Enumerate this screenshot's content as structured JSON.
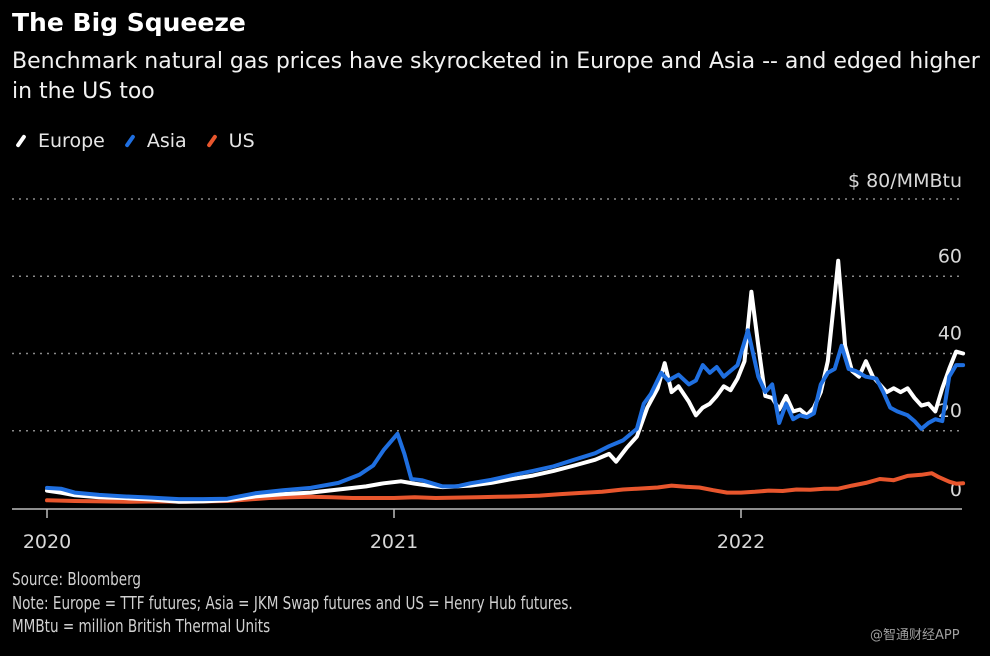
{
  "chart_data": {
    "type": "line",
    "title": "The Big Squeeze",
    "subtitle": "Benchmark natural gas prices have skyrocketed in Europe and Asia -- and edged higher in the US too",
    "xlabel": "",
    "ylabel": "$/MMBtu",
    "y_unit_label": "$ 80/MMBtu",
    "ylim": [
      0,
      80
    ],
    "yticks": [
      0,
      20,
      40,
      60,
      80
    ],
    "ytick_labels": [
      "0",
      "20",
      "40",
      "60",
      "$ 80/MMBtu"
    ],
    "xlim": [
      2020.0,
      2022.5
    ],
    "xticks": [
      2020,
      2021,
      2022
    ],
    "xtick_labels": [
      "2020",
      "2021",
      "2022"
    ],
    "grid": "horizontal-dotted",
    "legend_position": "top-left",
    "series": [
      {
        "name": "Europe",
        "color": "#ffffff",
        "points": [
          [
            2020.0,
            4.5
          ],
          [
            2020.04,
            4.0
          ],
          [
            2020.08,
            3.3
          ],
          [
            2020.15,
            2.8
          ],
          [
            2020.22,
            2.6
          ],
          [
            2020.3,
            2.2
          ],
          [
            2020.38,
            1.6
          ],
          [
            2020.45,
            1.7
          ],
          [
            2020.52,
            2.0
          ],
          [
            2020.6,
            3.0
          ],
          [
            2020.68,
            3.6
          ],
          [
            2020.76,
            4.0
          ],
          [
            2020.84,
            4.8
          ],
          [
            2020.92,
            5.6
          ],
          [
            2020.97,
            6.4
          ],
          [
            2021.02,
            6.9
          ],
          [
            2021.06,
            6.3
          ],
          [
            2021.1,
            5.8
          ],
          [
            2021.14,
            5.4
          ],
          [
            2021.18,
            5.6
          ],
          [
            2021.22,
            5.8
          ],
          [
            2021.28,
            6.5
          ],
          [
            2021.34,
            7.5
          ],
          [
            2021.4,
            8.4
          ],
          [
            2021.46,
            9.6
          ],
          [
            2021.52,
            11.0
          ],
          [
            2021.58,
            12.5
          ],
          [
            2021.62,
            14.0
          ],
          [
            2021.64,
            12.0
          ],
          [
            2021.67,
            15.5
          ],
          [
            2021.7,
            18.5
          ],
          [
            2021.73,
            26.0
          ],
          [
            2021.76,
            31.0
          ],
          [
            2021.78,
            37.5
          ],
          [
            2021.8,
            30.0
          ],
          [
            2021.82,
            31.5
          ],
          [
            2021.85,
            27.5
          ],
          [
            2021.87,
            24.0
          ],
          [
            2021.89,
            26.0
          ],
          [
            2021.91,
            27.0
          ],
          [
            2021.93,
            29.0
          ],
          [
            2021.95,
            31.5
          ],
          [
            2021.97,
            30.5
          ],
          [
            2021.99,
            33.5
          ],
          [
            2022.01,
            38.0
          ],
          [
            2022.03,
            56.0
          ],
          [
            2022.05,
            42.0
          ],
          [
            2022.07,
            29.0
          ],
          [
            2022.09,
            28.5
          ],
          [
            2022.11,
            25.5
          ],
          [
            2022.13,
            29.0
          ],
          [
            2022.15,
            25.0
          ],
          [
            2022.17,
            25.5
          ],
          [
            2022.19,
            24.0
          ],
          [
            2022.21,
            26.0
          ],
          [
            2022.23,
            30.0
          ],
          [
            2022.25,
            38.0
          ],
          [
            2022.27,
            55.0
          ],
          [
            2022.28,
            64.0
          ],
          [
            2022.3,
            42.0
          ],
          [
            2022.32,
            35.5
          ],
          [
            2022.34,
            34.0
          ],
          [
            2022.36,
            38.0
          ],
          [
            2022.38,
            34.0
          ],
          [
            2022.4,
            32.0
          ],
          [
            2022.42,
            30.0
          ],
          [
            2022.44,
            31.0
          ],
          [
            2022.46,
            30.0
          ],
          [
            2022.48,
            31.0
          ],
          [
            2022.5,
            28.5
          ],
          [
            2022.52,
            26.5
          ],
          [
            2022.54,
            27.0
          ],
          [
            2022.56,
            25.0
          ],
          [
            2022.58,
            31.0
          ],
          [
            2022.6,
            36.0
          ],
          [
            2022.62,
            40.5
          ],
          [
            2022.64,
            40.0
          ]
        ]
      },
      {
        "name": "Asia",
        "color": "#1f6fe0",
        "points": [
          [
            2020.0,
            5.2
          ],
          [
            2020.04,
            5.0
          ],
          [
            2020.08,
            4.0
          ],
          [
            2020.15,
            3.4
          ],
          [
            2020.22,
            3.0
          ],
          [
            2020.3,
            2.7
          ],
          [
            2020.38,
            2.3
          ],
          [
            2020.45,
            2.3
          ],
          [
            2020.52,
            2.4
          ],
          [
            2020.6,
            3.8
          ],
          [
            2020.68,
            4.6
          ],
          [
            2020.76,
            5.2
          ],
          [
            2020.84,
            6.5
          ],
          [
            2020.9,
            8.6
          ],
          [
            2020.94,
            11.0
          ],
          [
            2020.97,
            15.0
          ],
          [
            2021.01,
            19.2
          ],
          [
            2021.03,
            14.0
          ],
          [
            2021.05,
            7.5
          ],
          [
            2021.08,
            7.2
          ],
          [
            2021.11,
            6.4
          ],
          [
            2021.14,
            5.6
          ],
          [
            2021.18,
            5.6
          ],
          [
            2021.22,
            6.4
          ],
          [
            2021.28,
            7.3
          ],
          [
            2021.34,
            8.5
          ],
          [
            2021.4,
            9.6
          ],
          [
            2021.46,
            10.8
          ],
          [
            2021.52,
            12.5
          ],
          [
            2021.58,
            14.2
          ],
          [
            2021.62,
            16.0
          ],
          [
            2021.66,
            17.5
          ],
          [
            2021.7,
            20.5
          ],
          [
            2021.72,
            27.0
          ],
          [
            2021.74,
            29.5
          ],
          [
            2021.77,
            35.0
          ],
          [
            2021.79,
            33.0
          ],
          [
            2021.82,
            34.5
          ],
          [
            2021.85,
            32.0
          ],
          [
            2021.87,
            33.0
          ],
          [
            2021.89,
            37.0
          ],
          [
            2021.91,
            35.0
          ],
          [
            2021.93,
            36.5
          ],
          [
            2021.95,
            34.0
          ],
          [
            2021.97,
            35.5
          ],
          [
            2021.99,
            37.0
          ],
          [
            2022.02,
            46.0
          ],
          [
            2022.05,
            34.0
          ],
          [
            2022.07,
            30.0
          ],
          [
            2022.09,
            32.0
          ],
          [
            2022.11,
            22.0
          ],
          [
            2022.13,
            27.0
          ],
          [
            2022.15,
            23.0
          ],
          [
            2022.17,
            24.0
          ],
          [
            2022.19,
            23.5
          ],
          [
            2022.21,
            24.5
          ],
          [
            2022.23,
            32.0
          ],
          [
            2022.25,
            35.0
          ],
          [
            2022.27,
            36.0
          ],
          [
            2022.29,
            42.0
          ],
          [
            2022.31,
            36.0
          ],
          [
            2022.33,
            35.5
          ],
          [
            2022.36,
            34.0
          ],
          [
            2022.39,
            33.5
          ],
          [
            2022.41,
            30.0
          ],
          [
            2022.43,
            26.0
          ],
          [
            2022.45,
            25.0
          ],
          [
            2022.48,
            24.0
          ],
          [
            2022.5,
            22.5
          ],
          [
            2022.52,
            20.5
          ],
          [
            2022.54,
            22.0
          ],
          [
            2022.56,
            23.0
          ],
          [
            2022.58,
            22.5
          ],
          [
            2022.6,
            34.0
          ],
          [
            2022.62,
            37.0
          ],
          [
            2022.64,
            37.0
          ]
        ]
      },
      {
        "name": "US",
        "color": "#e8562d",
        "points": [
          [
            2020.0,
            2.0
          ],
          [
            2020.08,
            1.8
          ],
          [
            2020.16,
            1.7
          ],
          [
            2020.24,
            1.6
          ],
          [
            2020.32,
            1.7
          ],
          [
            2020.4,
            1.6
          ],
          [
            2020.46,
            1.7
          ],
          [
            2020.52,
            1.8
          ],
          [
            2020.58,
            2.2
          ],
          [
            2020.64,
            2.6
          ],
          [
            2020.7,
            2.8
          ],
          [
            2020.76,
            2.9
          ],
          [
            2020.82,
            2.8
          ],
          [
            2020.88,
            2.6
          ],
          [
            2020.94,
            2.6
          ],
          [
            2021.0,
            2.6
          ],
          [
            2021.06,
            2.8
          ],
          [
            2021.12,
            2.6
          ],
          [
            2021.18,
            2.7
          ],
          [
            2021.24,
            2.8
          ],
          [
            2021.3,
            2.9
          ],
          [
            2021.36,
            3.0
          ],
          [
            2021.42,
            3.2
          ],
          [
            2021.48,
            3.6
          ],
          [
            2021.54,
            3.9
          ],
          [
            2021.6,
            4.2
          ],
          [
            2021.66,
            4.8
          ],
          [
            2021.7,
            5.0
          ],
          [
            2021.76,
            5.3
          ],
          [
            2021.8,
            5.8
          ],
          [
            2021.84,
            5.5
          ],
          [
            2021.88,
            5.3
          ],
          [
            2021.92,
            4.6
          ],
          [
            2021.96,
            4.0
          ],
          [
            2022.0,
            4.0
          ],
          [
            2022.04,
            4.2
          ],
          [
            2022.08,
            4.5
          ],
          [
            2022.12,
            4.4
          ],
          [
            2022.16,
            4.8
          ],
          [
            2022.2,
            4.7
          ],
          [
            2022.24,
            5.0
          ],
          [
            2022.28,
            5.0
          ],
          [
            2022.32,
            5.8
          ],
          [
            2022.36,
            6.5
          ],
          [
            2022.4,
            7.5
          ],
          [
            2022.44,
            7.2
          ],
          [
            2022.48,
            8.3
          ],
          [
            2022.52,
            8.6
          ],
          [
            2022.55,
            9.0
          ],
          [
            2022.57,
            8.0
          ],
          [
            2022.6,
            6.8
          ],
          [
            2022.62,
            6.3
          ],
          [
            2022.64,
            6.4
          ]
        ]
      }
    ]
  },
  "legend": [
    {
      "name": "Europe",
      "color": "#ffffff"
    },
    {
      "name": "Asia",
      "color": "#1f6fe0"
    },
    {
      "name": "US",
      "color": "#e8562d"
    }
  ],
  "footer": {
    "source": "Source: Bloomberg",
    "note": "Note: Europe = TTF futures; Asia = JKM Swap futures and US = Henry Hub futures.",
    "units": "MMBtu = million British Thermal Units"
  },
  "watermark": "@智通财经APP"
}
